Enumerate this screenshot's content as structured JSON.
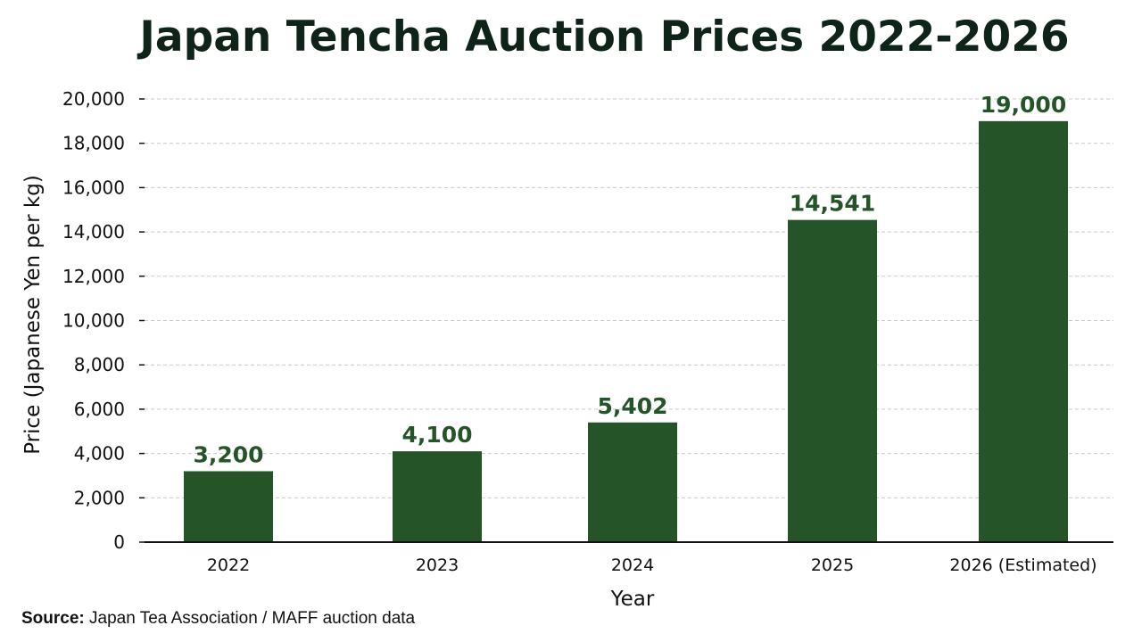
{
  "chart_data": {
    "type": "bar",
    "title": "Japan Tencha Auction Prices 2022-2026",
    "xlabel": "Year",
    "ylabel": "Price (Japanese Yen per kg)",
    "categories": [
      "2022",
      "2023",
      "2024",
      "2025",
      "2026 (Estimated)"
    ],
    "values": [
      3200,
      4100,
      5402,
      14541,
      19000
    ],
    "value_labels": [
      "3,200",
      "4,100",
      "5,402",
      "14,541",
      "19,000"
    ],
    "ylim": [
      0,
      20000
    ],
    "yticks": [
      0,
      2000,
      4000,
      6000,
      8000,
      10000,
      12000,
      14000,
      16000,
      18000,
      20000
    ],
    "ytick_labels": [
      "0",
      "2,000",
      "4,000",
      "6,000",
      "8,000",
      "10,000",
      "12,000",
      "14,000",
      "16,000",
      "18,000",
      "20,000"
    ],
    "grid": true,
    "bar_color": "#245428",
    "label_color": "#245428"
  },
  "source": {
    "label": "Source:",
    "text": "Japan Tea Association / MAFF auction data"
  }
}
